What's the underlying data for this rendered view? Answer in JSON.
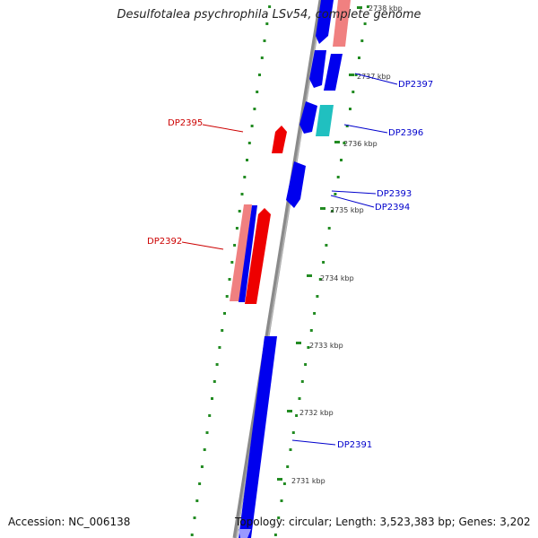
{
  "title": "Desulfotalea psychrophila LSv54, complete genome",
  "footer": {
    "accession": "Accession: NC_006138",
    "topology": "Topology: circular; Length: 3,523,383 bp; Genes: 3,202"
  },
  "colors": {
    "forward_strand": "#0000ee",
    "reverse_strand": "#ee0000",
    "rna_or_pseudo_reverse": "#f08080",
    "other_feature": "#20c0c0",
    "backbone": "#888888",
    "tick": "#228b22",
    "label_reverse": "#cc0000",
    "label_forward": "#0000cc"
  },
  "scale_ticks": [
    {
      "kbp": 2738,
      "label": "2738 kbp"
    },
    {
      "kbp": 2737,
      "label": "2737 kbp"
    },
    {
      "kbp": 2736,
      "label": "2736 kbp"
    },
    {
      "kbp": 2735,
      "label": "2735 kbp"
    },
    {
      "kbp": 2734,
      "label": "2734 kbp"
    },
    {
      "kbp": 2733,
      "label": "2733 kbp"
    },
    {
      "kbp": 2732,
      "label": "2732 kbp"
    },
    {
      "kbp": 2731,
      "label": "2731 kbp"
    }
  ],
  "gene_labels": [
    {
      "id": "DP2397",
      "strand": "forward"
    },
    {
      "id": "DP2396",
      "strand": "forward"
    },
    {
      "id": "DP2395",
      "strand": "reverse"
    },
    {
      "id": "DP2393",
      "strand": "forward"
    },
    {
      "id": "DP2394",
      "strand": "forward"
    },
    {
      "id": "DP2392",
      "strand": "reverse"
    },
    {
      "id": "DP2391",
      "strand": "forward"
    }
  ]
}
